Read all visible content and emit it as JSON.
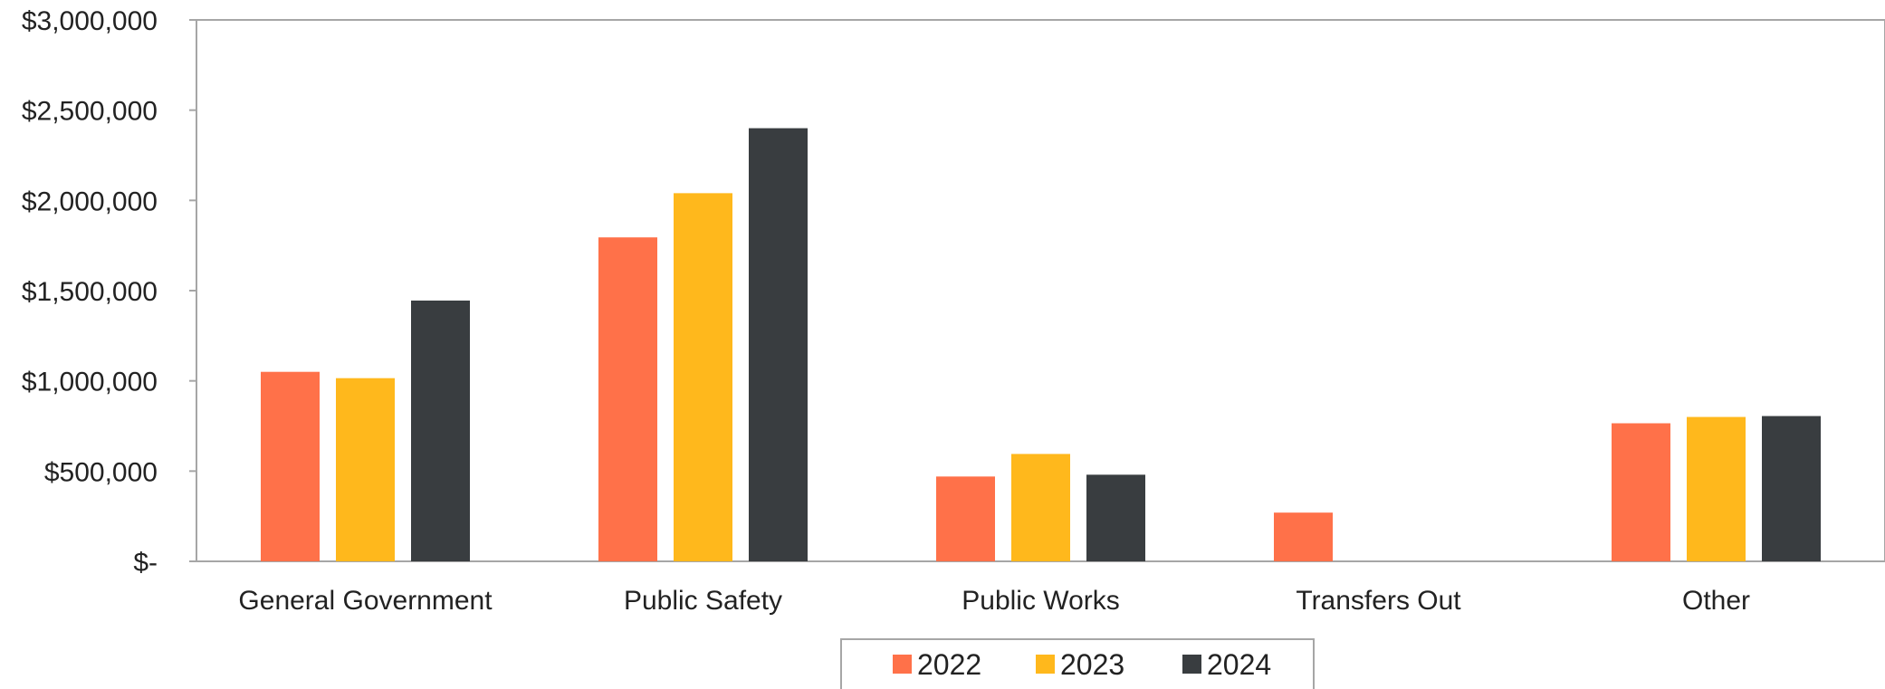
{
  "chart_data": {
    "type": "bar",
    "title": "",
    "xlabel": "",
    "ylabel": "",
    "categories": [
      "General Government",
      "Public Safety",
      "Public Works",
      "Transfers Out",
      "Other"
    ],
    "series": [
      {
        "name": "2022",
        "color": "#ff7149",
        "values": [
          1050000,
          1795000,
          470000,
          270000,
          765000
        ]
      },
      {
        "name": "2023",
        "color": "#ffb81c",
        "values": [
          1015000,
          2040000,
          595000,
          0,
          800000
        ]
      },
      {
        "name": "2024",
        "color": "#393d40",
        "values": [
          1445000,
          2400000,
          480000,
          0,
          805000
        ]
      }
    ],
    "ylim": [
      0,
      3000000
    ],
    "y_ticks": [
      {
        "value": 0,
        "label": "$-"
      },
      {
        "value": 500000,
        "label": "$500,000"
      },
      {
        "value": 1000000,
        "label": "$1,000,000"
      },
      {
        "value": 1500000,
        "label": "$1,500,000"
      },
      {
        "value": 2000000,
        "label": "$2,000,000"
      },
      {
        "value": 2500000,
        "label": "$2,500,000"
      },
      {
        "value": 3000000,
        "label": "$3,000,000"
      }
    ],
    "grid": false,
    "legend_position": "bottom-center"
  }
}
